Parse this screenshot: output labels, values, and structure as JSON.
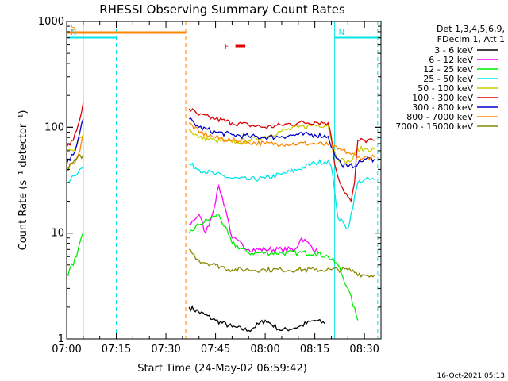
{
  "chart_data": {
    "type": "line",
    "title": "RHESSI Observing Summary Count Rates",
    "xlabel": "Start Time (24-May-02 06:59:42)",
    "ylabel": "Count Rate (s⁻¹ detector⁻¹)",
    "ylim": [
      1,
      1000
    ],
    "y_scale": "log",
    "xlim": [
      "07:00",
      "08:35"
    ],
    "x_tick_labels": [
      "07:00",
      "07:15",
      "07:30",
      "07:45",
      "08:00",
      "08:15",
      "08:30"
    ],
    "y_tick_labels": [
      "1",
      "10",
      "100",
      "1000"
    ],
    "footer_date": "16-Oct-2021 05:13",
    "legend": {
      "header_line1": "Det 1,3,4,5,6,9,",
      "header_line2": "FDecim 1, Att 1"
    },
    "flags": [
      {
        "label": "S",
        "color": "#ff8800",
        "start": "07:00",
        "end": "07:36"
      },
      {
        "label": "N",
        "color": "#00e5e5",
        "start": "07:00",
        "end": "07:15"
      },
      {
        "label": "N",
        "color": "#00e5e5",
        "start": "08:21",
        "end": "08:35"
      },
      {
        "label": "F",
        "color": "#dd0000",
        "start": "07:51",
        "end": "07:54"
      }
    ],
    "vertical_markers": [
      {
        "time": "07:05",
        "color": "#ff8800",
        "style": "solid"
      },
      {
        "time": "07:36",
        "color": "#ff8800",
        "style": "dashed"
      },
      {
        "time": "07:15",
        "color": "#00e5e5",
        "style": "dashed"
      },
      {
        "time": "08:21",
        "color": "#00e5e5",
        "style": "solid"
      },
      {
        "time": "08:34",
        "color": "#00e5e5",
        "style": "dashed"
      }
    ],
    "series": [
      {
        "name": "3 - 6 keV",
        "color": "#000000",
        "x": [
          "07:37",
          "07:45",
          "07:50",
          "07:55",
          "08:00",
          "08:05",
          "08:10",
          "08:15",
          "08:18"
        ],
        "y": [
          2,
          1.5,
          1.3,
          1.2,
          1.5,
          1.2,
          1.3,
          1.5,
          1.4
        ]
      },
      {
        "name": "6 - 12 keV",
        "color": "#ff00ff",
        "x": [
          "07:37",
          "07:40",
          "07:42",
          "07:44",
          "07:46",
          "07:48",
          "07:50",
          "07:55",
          "08:00",
          "08:05",
          "08:09",
          "08:11",
          "08:14",
          "08:16"
        ],
        "y": [
          12,
          15,
          10,
          15,
          28,
          17,
          9,
          7,
          7,
          7,
          7,
          9,
          7.5,
          6.5
        ]
      },
      {
        "name": "12 - 25 keV",
        "color": "#00ee00",
        "x": [
          "07:00",
          "07:03",
          "07:05",
          "07:37",
          "07:40",
          "07:44",
          "07:46",
          "07:50",
          "07:55",
          "08:00",
          "08:05",
          "08:10",
          "08:15",
          "08:19",
          "08:22",
          "08:25",
          "08:28"
        ],
        "y": [
          4,
          6,
          10,
          10,
          12,
          14,
          15,
          8,
          6.5,
          6.5,
          6.5,
          6.5,
          6.5,
          6,
          5,
          3,
          1.5
        ]
      },
      {
        "name": "25 - 50 keV",
        "color": "#00e5e5",
        "x": [
          "07:00",
          "07:02",
          "07:05",
          "07:37",
          "07:40",
          "07:45",
          "07:50",
          "07:55",
          "08:00",
          "08:05",
          "08:10",
          "08:15",
          "08:19",
          "08:20",
          "08:21",
          "08:22",
          "08:24",
          "08:25",
          "08:28",
          "08:30",
          "08:33"
        ],
        "y": [
          30,
          35,
          42,
          45,
          40,
          36,
          33,
          32,
          33,
          36,
          40,
          46,
          48,
          42,
          25,
          14,
          12,
          11,
          30,
          32,
          32
        ]
      },
      {
        "name": "50 - 100 keV",
        "color": "#cccc00",
        "x": [
          "07:00",
          "07:02",
          "07:04",
          "07:05",
          "07:37",
          "07:40",
          "07:45",
          "07:50",
          "07:55",
          "08:00",
          "08:05",
          "08:10",
          "08:15",
          "08:19",
          "08:20",
          "08:22",
          "08:24",
          "08:26",
          "08:28",
          "08:30",
          "08:33"
        ],
        "y": [
          60,
          60,
          80,
          85,
          95,
          80,
          75,
          72,
          75,
          82,
          92,
          100,
          105,
          105,
          75,
          50,
          48,
          48,
          62,
          62,
          62
        ]
      },
      {
        "name": "100 - 300 keV",
        "color": "#dd0000",
        "x": [
          "07:00",
          "07:02",
          "07:04",
          "07:05",
          "07:37",
          "07:40",
          "07:45",
          "07:50",
          "07:55",
          "08:00",
          "08:05",
          "08:10",
          "08:15",
          "08:19",
          "08:20",
          "08:21",
          "08:23",
          "08:25",
          "08:26",
          "08:27",
          "08:28",
          "08:30",
          "08:33"
        ],
        "y": [
          65,
          75,
          120,
          170,
          150,
          130,
          120,
          110,
          105,
          100,
          105,
          110,
          112,
          110,
          80,
          45,
          28,
          22,
          20,
          30,
          75,
          75,
          75
        ]
      },
      {
        "name": "300 - 800 keV",
        "color": "#0000cc",
        "x": [
          "07:00",
          "07:02",
          "07:04",
          "07:05",
          "07:37",
          "07:40",
          "07:45",
          "07:50",
          "07:55",
          "08:00",
          "08:05",
          "08:10",
          "08:15",
          "08:19",
          "08:21",
          "08:23",
          "08:25",
          "08:28",
          "08:30",
          "08:33"
        ],
        "y": [
          45,
          55,
          90,
          120,
          120,
          100,
          90,
          85,
          82,
          80,
          82,
          85,
          85,
          82,
          55,
          45,
          42,
          45,
          50,
          50
        ]
      },
      {
        "name": "800 - 7000 keV",
        "color": "#ff8800",
        "x": [
          "07:00",
          "07:02",
          "07:04",
          "07:05",
          "07:37",
          "07:40",
          "07:45",
          "07:50",
          "07:55",
          "08:00",
          "08:05",
          "08:10",
          "08:15",
          "08:19",
          "08:22",
          "08:25",
          "08:28",
          "08:30",
          "08:33"
        ],
        "y": [
          42,
          45,
          60,
          85,
          110,
          90,
          80,
          75,
          72,
          70,
          70,
          70,
          70,
          68,
          62,
          58,
          52,
          52,
          52
        ]
      },
      {
        "name": "7000 - 15000 keV",
        "color": "#888800",
        "x": [
          "07:00",
          "07:03",
          "07:05",
          "07:37",
          "07:40",
          "07:45",
          "07:50",
          "07:55",
          "08:00",
          "08:05",
          "08:10",
          "08:15",
          "08:20",
          "08:25",
          "08:30",
          "08:33"
        ],
        "y": [
          40,
          50,
          55,
          7,
          5.5,
          5,
          4.5,
          4.5,
          4.5,
          4.5,
          4.5,
          4.5,
          4.5,
          4.5,
          4,
          4
        ]
      }
    ]
  }
}
